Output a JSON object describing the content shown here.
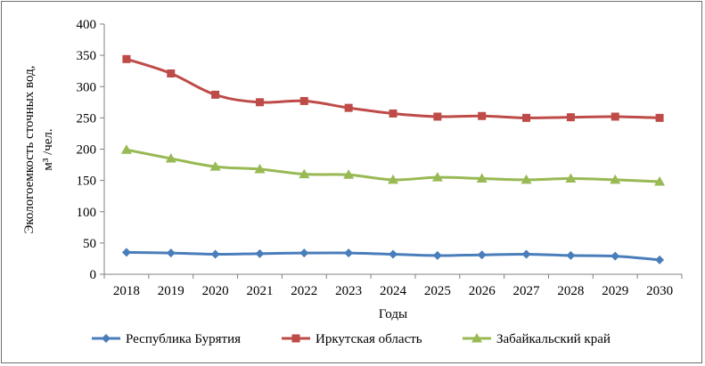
{
  "chart_data": {
    "type": "line",
    "title": "",
    "xlabel": "Годы",
    "ylabel_line1": "Экологоемкость сточных вод,",
    "ylabel_line2": "м³ /чел.",
    "x": [
      "2018",
      "2019",
      "2020",
      "2021",
      "2022",
      "2023",
      "2024",
      "2025",
      "2026",
      "2027",
      "2028",
      "2029",
      "2030"
    ],
    "ylim": [
      0,
      400
    ],
    "yticks": [
      0,
      50,
      100,
      150,
      200,
      250,
      300,
      350,
      400
    ],
    "grid": false,
    "legend_position": "bottom",
    "series": [
      {
        "name": "Республика Бурятия",
        "color": "#4a7ebb",
        "marker": "diamond",
        "values": [
          35,
          34,
          32,
          33,
          34,
          34,
          32,
          30,
          31,
          32,
          30,
          29,
          23
        ]
      },
      {
        "name": "Иркутская область",
        "color": "#be4b48",
        "marker": "square",
        "values": [
          344,
          321,
          287,
          275,
          277,
          266,
          257,
          252,
          253,
          250,
          251,
          252,
          250
        ]
      },
      {
        "name": "Забайкальский край",
        "color": "#98b954",
        "marker": "triangle",
        "values": [
          199,
          185,
          172,
          168,
          160,
          159,
          151,
          155,
          153,
          151,
          153,
          151,
          148
        ]
      }
    ]
  }
}
